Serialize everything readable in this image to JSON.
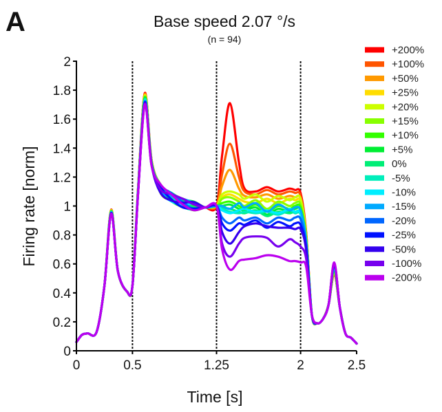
{
  "panel_label": "A",
  "chart_data": {
    "type": "line",
    "title": "Base speed 2.07 °/s",
    "subtitle": "(n = 94)",
    "xlabel": "Time [s]",
    "ylabel": "Firing rate [norm]",
    "xlim": [
      0,
      2.5
    ],
    "ylim": [
      0,
      2
    ],
    "xticks": [
      0,
      0.5,
      1.25,
      2,
      2.5
    ],
    "xtick_labels": [
      "0",
      "0.5",
      "1.25",
      "2",
      "2.5"
    ],
    "yticks": [
      0,
      0.2,
      0.4,
      0.6,
      0.8,
      1,
      1.2,
      1.4,
      1.6,
      1.8,
      2
    ],
    "ytick_labels": [
      "0",
      "0.2",
      "0.4",
      "0.6",
      "0.8",
      "1",
      "1.2",
      "1.4",
      "1.6",
      "1.8",
      "2"
    ],
    "vlines": [
      0.5,
      1.25,
      2
    ],
    "grid": false,
    "legend_position": "right",
    "shared_baseline": {
      "x": [
        0,
        0.05,
        0.1,
        0.18,
        0.25,
        0.31,
        0.37,
        0.45,
        0.5,
        0.55,
        0.61,
        0.67,
        0.75,
        0.85,
        0.95,
        1.05,
        1.15,
        1.25
      ],
      "y": [
        0.06,
        0.11,
        0.12,
        0.13,
        0.45,
        0.96,
        0.55,
        0.41,
        0.45,
        1.1,
        1.74,
        1.3,
        1.12,
        1.06,
        1.02,
        1.0,
        0.99,
        1.0
      ]
    },
    "shared_offset": {
      "x": [
        2.0,
        2.05,
        2.1,
        2.15,
        2.2,
        2.25,
        2.3,
        2.35,
        2.4,
        2.45,
        2.5
      ],
      "y_end_of_response_to": [
        0.55,
        0.25,
        0.19,
        0.22,
        0.32,
        0.57,
        0.3,
        0.12,
        0.09,
        0.05
      ],
      "note": "offset trajectory after 2 s is shared across conditions"
    },
    "series": [
      {
        "name": "+200%",
        "color": "#ff0000",
        "response": {
          "x": [
            1.25,
            1.3,
            1.37,
            1.45,
            1.5,
            1.6,
            1.7,
            1.8,
            1.9,
            1.95,
            2.0
          ],
          "y": [
            1.05,
            1.35,
            1.71,
            1.3,
            1.12,
            1.1,
            1.13,
            1.1,
            1.12,
            1.11,
            1.09
          ]
        }
      },
      {
        "name": "+100%",
        "color": "#ff5500",
        "response": {
          "x": [
            1.25,
            1.3,
            1.37,
            1.45,
            1.5,
            1.6,
            1.7,
            1.8,
            1.9,
            1.95,
            2.0
          ],
          "y": [
            1.04,
            1.22,
            1.43,
            1.2,
            1.1,
            1.08,
            1.11,
            1.08,
            1.1,
            1.09,
            1.07
          ]
        }
      },
      {
        "name": "+50%",
        "color": "#ff9900",
        "response": {
          "x": [
            1.25,
            1.3,
            1.37,
            1.45,
            1.5,
            1.6,
            1.7,
            1.8,
            1.9,
            1.95,
            2.0
          ],
          "y": [
            1.03,
            1.14,
            1.25,
            1.12,
            1.07,
            1.06,
            1.08,
            1.05,
            1.07,
            1.06,
            1.05
          ]
        }
      },
      {
        "name": "+25%",
        "color": "#ffdd00",
        "response": {
          "x": [
            1.25,
            1.3,
            1.37,
            1.45,
            1.5,
            1.6,
            1.7,
            1.8,
            1.9,
            1.95,
            2.0
          ],
          "y": [
            1.02,
            1.06,
            1.08,
            1.05,
            1.03,
            1.02,
            1.05,
            1.02,
            1.05,
            1.04,
            1.03
          ]
        }
      },
      {
        "name": "+20%",
        "color": "#ccff00",
        "response": {
          "x": [
            1.25,
            1.3,
            1.37,
            1.45,
            1.5,
            1.6,
            1.7,
            1.8,
            1.9,
            1.95,
            2.0
          ],
          "y": [
            1.02,
            1.08,
            1.1,
            1.08,
            1.05,
            1.08,
            1.03,
            1.07,
            1.04,
            1.06,
            1.05
          ]
        }
      },
      {
        "name": "+15%",
        "color": "#88ff00",
        "response": {
          "x": [
            1.25,
            1.3,
            1.37,
            1.45,
            1.5,
            1.6,
            1.7,
            1.8,
            1.9,
            1.95,
            2.0
          ],
          "y": [
            1.01,
            1.05,
            1.06,
            1.03,
            1.0,
            1.04,
            0.98,
            1.03,
            1.0,
            1.02,
            1.01
          ]
        }
      },
      {
        "name": "+10%",
        "color": "#33ff00",
        "response": {
          "x": [
            1.25,
            1.3,
            1.37,
            1.45,
            1.5,
            1.6,
            1.7,
            1.8,
            1.9,
            1.95,
            2.0
          ],
          "y": [
            1.0,
            1.02,
            1.03,
            1.0,
            0.98,
            1.01,
            0.96,
            1.0,
            0.98,
            1.0,
            0.99
          ]
        }
      },
      {
        "name": "+5%",
        "color": "#00ee33",
        "response": {
          "x": [
            1.25,
            1.3,
            1.37,
            1.45,
            1.5,
            1.6,
            1.7,
            1.8,
            1.9,
            1.95,
            2.0
          ],
          "y": [
            1.0,
            1.0,
            1.01,
            0.98,
            0.97,
            0.99,
            0.94,
            0.98,
            0.96,
            0.98,
            0.97
          ]
        }
      },
      {
        "name": "0%",
        "color": "#00ee77",
        "response": {
          "x": [
            1.25,
            1.3,
            1.37,
            1.45,
            1.5,
            1.6,
            1.7,
            1.8,
            1.9,
            1.95,
            2.0
          ],
          "y": [
            1.0,
            0.99,
            0.98,
            0.96,
            0.95,
            0.97,
            0.93,
            0.96,
            0.95,
            0.96,
            0.95
          ]
        }
      },
      {
        "name": "-5%",
        "color": "#00eebb",
        "response": {
          "x": [
            1.25,
            1.3,
            1.37,
            1.45,
            1.5,
            1.6,
            1.7,
            1.8,
            1.9,
            1.95,
            2.0
          ],
          "y": [
            1.0,
            0.98,
            0.96,
            0.95,
            0.96,
            0.95,
            0.96,
            0.94,
            0.97,
            0.95,
            0.94
          ]
        }
      },
      {
        "name": "-10%",
        "color": "#00eeff",
        "response": {
          "x": [
            1.25,
            1.3,
            1.37,
            1.45,
            1.5,
            1.6,
            1.7,
            1.8,
            1.9,
            1.95,
            2.0
          ],
          "y": [
            1.01,
            0.97,
            0.95,
            0.97,
            0.98,
            0.96,
            0.97,
            0.95,
            0.98,
            0.96,
            0.95
          ]
        }
      },
      {
        "name": "-15%",
        "color": "#00aaff",
        "response": {
          "x": [
            1.25,
            1.3,
            1.37,
            1.45,
            1.5,
            1.6,
            1.7,
            1.8,
            1.9,
            1.95,
            2.0
          ],
          "y": [
            1.04,
            1.0,
            0.98,
            1.02,
            0.99,
            1.02,
            0.96,
            1.01,
            0.97,
            0.99,
            0.97
          ]
        }
      },
      {
        "name": "-20%",
        "color": "#0066ff",
        "response": {
          "x": [
            1.25,
            1.3,
            1.37,
            1.45,
            1.5,
            1.6,
            1.7,
            1.8,
            1.9,
            1.95,
            2.0
          ],
          "y": [
            1.0,
            0.92,
            0.88,
            0.92,
            0.9,
            0.92,
            0.88,
            0.92,
            0.9,
            0.92,
            0.91
          ]
        }
      },
      {
        "name": "-25%",
        "color": "#0011ff",
        "response": {
          "x": [
            1.25,
            1.3,
            1.37,
            1.45,
            1.5,
            1.6,
            1.7,
            1.8,
            1.9,
            1.95,
            2.0
          ],
          "y": [
            0.99,
            0.88,
            0.83,
            0.88,
            0.87,
            0.9,
            0.85,
            0.89,
            0.86,
            0.88,
            0.87
          ]
        }
      },
      {
        "name": "-50%",
        "color": "#3300ee",
        "response": {
          "x": [
            1.25,
            1.3,
            1.37,
            1.45,
            1.5,
            1.6,
            1.7,
            1.8,
            1.9,
            1.95,
            2.0
          ],
          "y": [
            0.99,
            0.82,
            0.74,
            0.82,
            0.86,
            0.88,
            0.86,
            0.85,
            0.85,
            0.84,
            0.84
          ]
        }
      },
      {
        "name": "-100%",
        "color": "#7700ee",
        "response": {
          "x": [
            1.25,
            1.3,
            1.37,
            1.45,
            1.5,
            1.6,
            1.7,
            1.8,
            1.9,
            1.95,
            2.0
          ],
          "y": [
            0.99,
            0.74,
            0.65,
            0.74,
            0.78,
            0.79,
            0.78,
            0.72,
            0.77,
            0.75,
            0.72
          ]
        }
      },
      {
        "name": "-200%",
        "color": "#bb00ee",
        "response": {
          "x": [
            1.25,
            1.3,
            1.37,
            1.45,
            1.5,
            1.6,
            1.7,
            1.8,
            1.9,
            1.95,
            2.0
          ],
          "y": [
            0.98,
            0.7,
            0.56,
            0.62,
            0.63,
            0.64,
            0.66,
            0.65,
            0.62,
            0.62,
            0.61
          ]
        }
      }
    ]
  }
}
